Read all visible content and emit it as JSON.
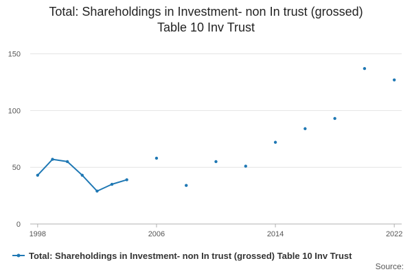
{
  "chart_data": {
    "type": "line",
    "title_line1": "Total: Shareholdings in Investment- non In trust (grossed)",
    "title_line2": "Table 10 Inv Trust",
    "xlabel": "",
    "ylabel": "",
    "ylim": [
      0,
      160
    ],
    "xlim": [
      1997.5,
      2022.5
    ],
    "yticks": [
      0,
      50,
      100,
      150
    ],
    "xticks": [
      1998,
      2006,
      2014,
      2022
    ],
    "grid": "horizontal",
    "legend_placement": "bottom-left",
    "series": [
      {
        "name": "Total: Shareholdings in Investment- non In trust (grossed) Table 10 Inv Trust",
        "color": "#1f78b4",
        "x": [
          1998,
          1999,
          2000,
          2001,
          2002,
          2003,
          2004,
          2006,
          2008,
          2010,
          2012,
          2014,
          2016,
          2018,
          2020,
          2022
        ],
        "y": [
          43,
          57,
          55,
          43,
          29,
          35,
          39,
          58,
          34,
          55,
          51,
          72,
          84,
          93,
          137,
          127
        ]
      }
    ]
  },
  "footer": {
    "source_label": "Source:"
  }
}
